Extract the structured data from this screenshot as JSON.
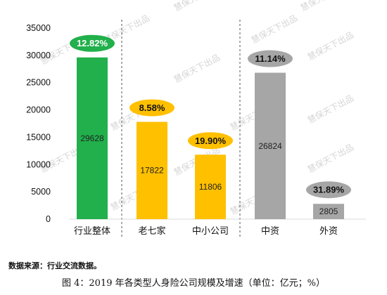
{
  "chart_data": {
    "type": "bar",
    "categories": [
      "行业整体",
      "老七家",
      "中小公司",
      "中资",
      "外资"
    ],
    "values": [
      29628,
      17822,
      11806,
      26824,
      2805
    ],
    "growth_labels": [
      "12.82%",
      "8.58%",
      "19.90%",
      "11.14%",
      "31.89%"
    ],
    "ylim": [
      0,
      35000
    ],
    "yticks": [
      0,
      5000,
      10000,
      15000,
      20000,
      25000,
      30000,
      35000
    ],
    "grid": false,
    "legend": "none"
  },
  "colors": {
    "bars": [
      "#21b04b",
      "#ffc000",
      "#ffc000",
      "#a6a6a6",
      "#a6a6a6"
    ],
    "badges": [
      "#21b04b",
      "#ffc000",
      "#ffc000",
      "#a6a6a6",
      "#a6a6a6"
    ],
    "badge_text": [
      "#ffffff",
      "#111111",
      "#111111",
      "#111111",
      "#111111"
    ]
  },
  "watermark": "慧保天下出品",
  "source": "数据来源：行业交流数据。",
  "caption": "图 4：2019 年各类型人身险公司规模及增速（单位：亿元；%）"
}
